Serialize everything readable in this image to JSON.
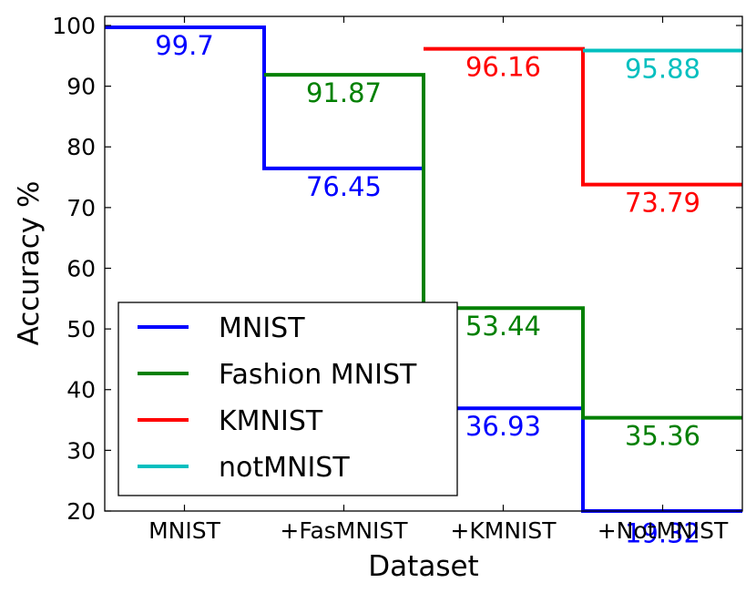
{
  "chart_data": {
    "type": "line",
    "subtype": "step",
    "title": "",
    "xlabel": "Dataset",
    "ylabel": "Accuracy %",
    "categories": [
      "MNIST",
      "+FasMNIST",
      "+KMNIST",
      "+NotMNIST"
    ],
    "ylim": [
      20,
      101.5
    ],
    "yticks": [
      20,
      30,
      40,
      50,
      60,
      70,
      80,
      90,
      100
    ],
    "grid": false,
    "legend_position": "lower-left",
    "series": [
      {
        "name": "MNIST",
        "color": "#0000ff",
        "values": [
          99.7,
          76.45,
          36.93,
          19.32
        ],
        "labels": [
          "99.7",
          "76.45",
          "36.93",
          "19.32"
        ]
      },
      {
        "name": "Fashion MNIST",
        "color": "#008000",
        "values": [
          null,
          91.87,
          53.44,
          35.36
        ],
        "labels": [
          "",
          "91.87",
          "53.44",
          "35.36"
        ]
      },
      {
        "name": "KMNIST",
        "color": "#ff0000",
        "values": [
          null,
          null,
          96.16,
          73.79
        ],
        "labels": [
          "",
          "",
          "96.16",
          "73.79"
        ]
      },
      {
        "name": "notMNIST",
        "color": "#00bfbf",
        "values": [
          null,
          null,
          null,
          95.88
        ],
        "labels": [
          "",
          "",
          "",
          "95.88"
        ]
      }
    ]
  }
}
